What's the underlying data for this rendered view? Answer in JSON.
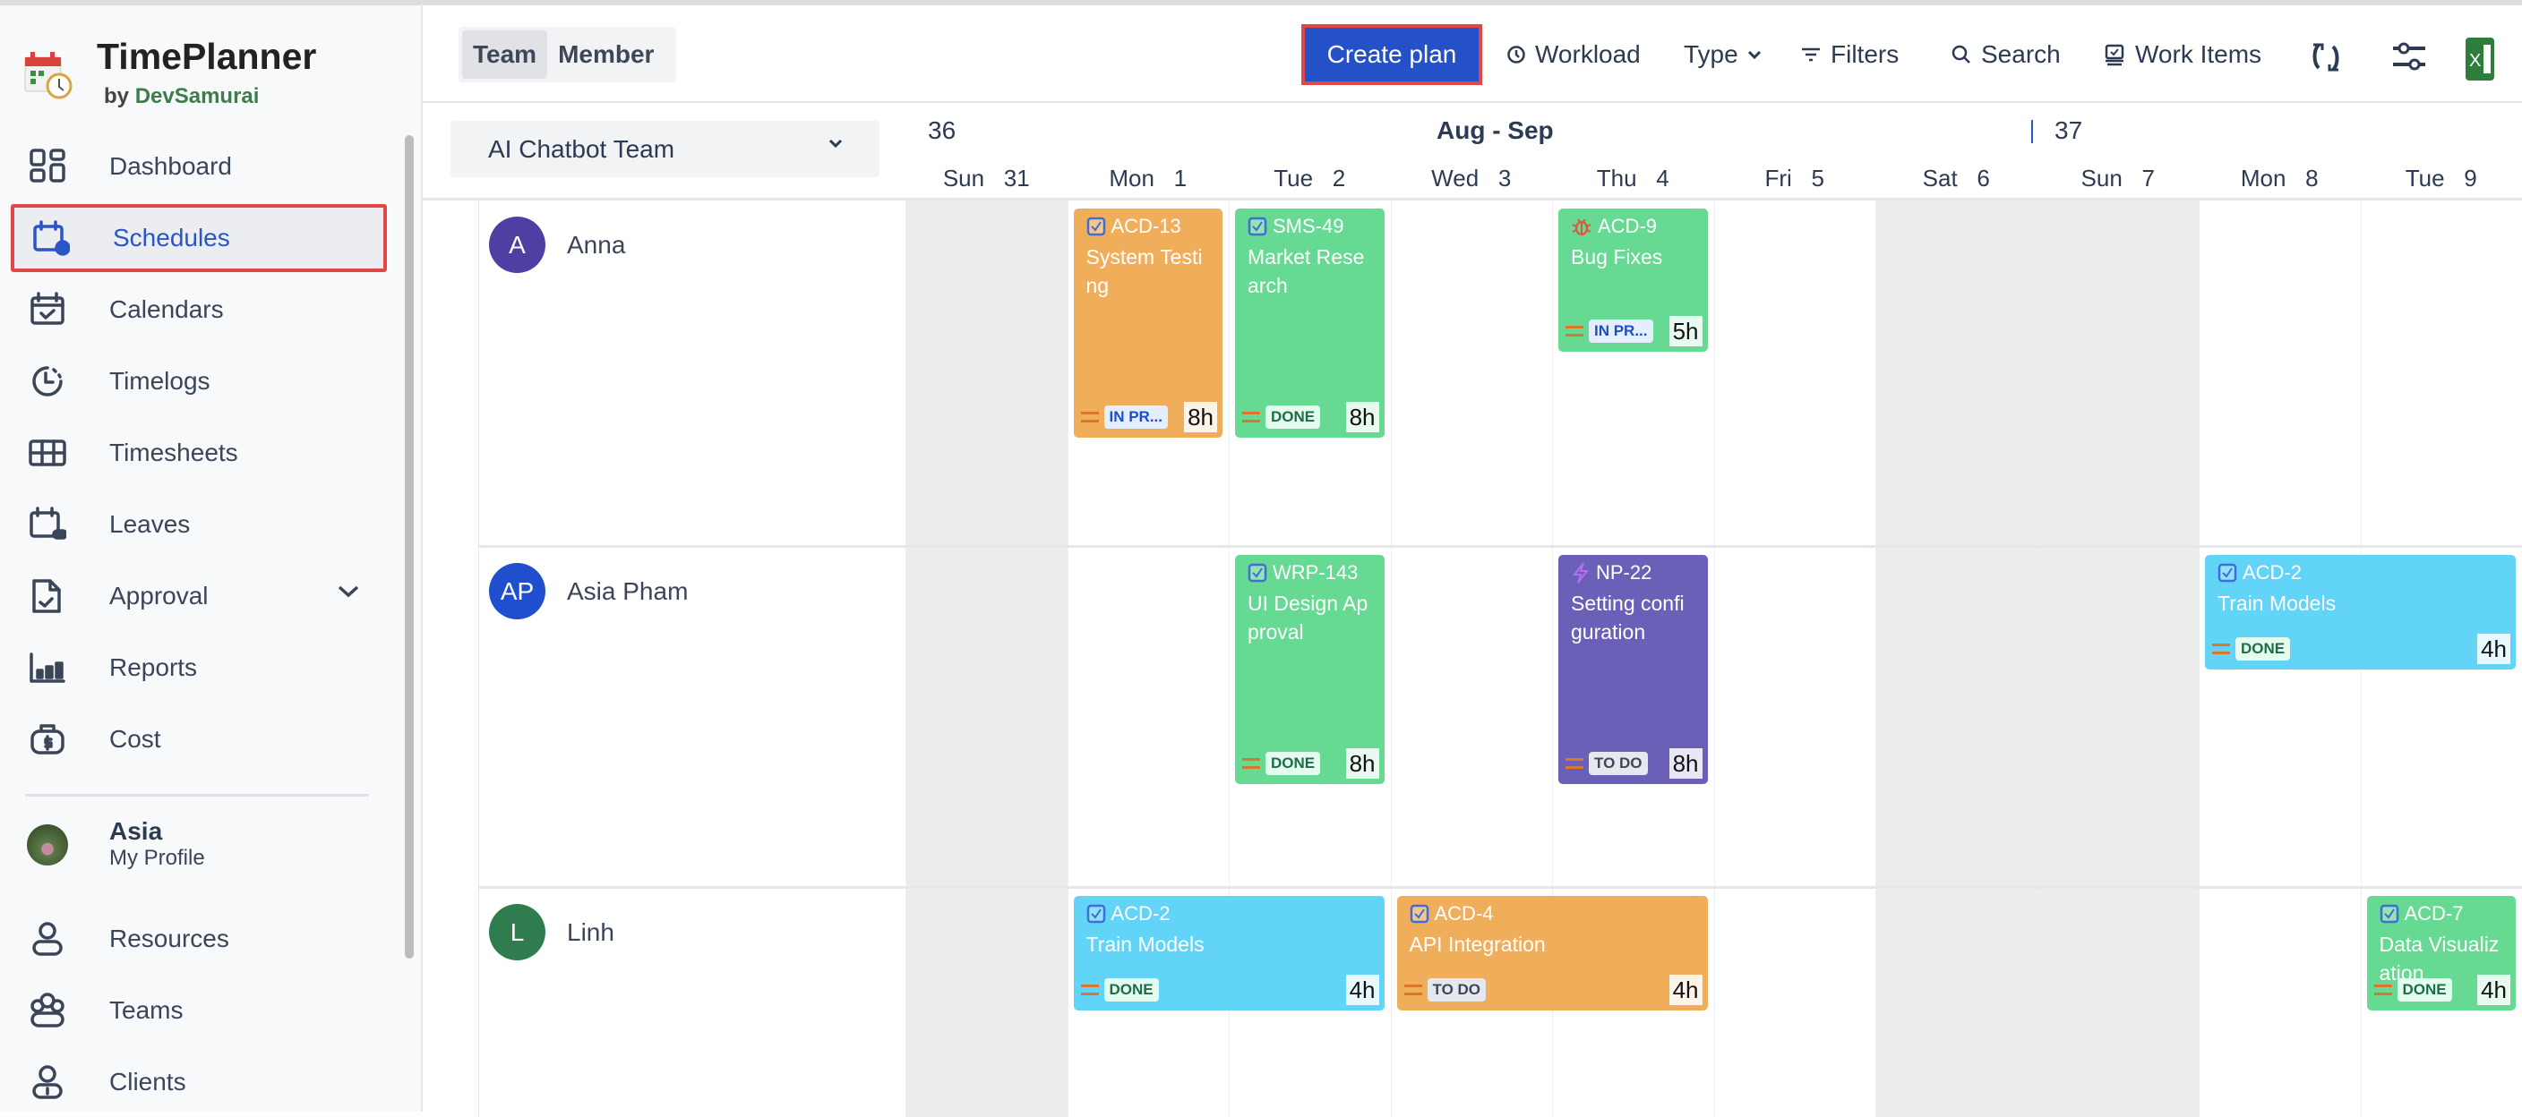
{
  "app": {
    "name": "TimePlanner",
    "by": "by",
    "vendor": "DevSamurai"
  },
  "sidebar": {
    "items": [
      {
        "label": "Dashboard",
        "icon": "dashboard-icon"
      },
      {
        "label": "Schedules",
        "icon": "calendar-plus-icon",
        "active": true
      },
      {
        "label": "Calendars",
        "icon": "calendar-check-icon"
      },
      {
        "label": "Timelogs",
        "icon": "clock-icon"
      },
      {
        "label": "Timesheets",
        "icon": "grid-table-icon"
      },
      {
        "label": "Leaves",
        "icon": "calendar-minus-icon"
      },
      {
        "label": "Approval",
        "icon": "document-check-icon",
        "expandable": true
      },
      {
        "label": "Reports",
        "icon": "bar-chart-icon"
      },
      {
        "label": "Cost",
        "icon": "money-bag-icon"
      }
    ],
    "profile": {
      "name": "Asia",
      "sub": "My Profile"
    },
    "bottom_items": [
      {
        "label": "Resources",
        "icon": "person-icon"
      },
      {
        "label": "Teams",
        "icon": "group-icon"
      },
      {
        "label": "Clients",
        "icon": "client-icon"
      }
    ]
  },
  "header": {
    "view_toggle": [
      "Team",
      "Member"
    ],
    "selected_view": "Team",
    "create_label": "Create plan",
    "workload": "Workload",
    "type": "Type",
    "filters": "Filters",
    "search": "Search",
    "work_items": "Work Items"
  },
  "team_select": "AI Chatbot Team",
  "calendar": {
    "week_a": "36",
    "week_b": "37",
    "month": "Aug - Sep",
    "days": [
      {
        "dow": "Sun",
        "d": "31",
        "weekend": true
      },
      {
        "dow": "Mon",
        "d": "1"
      },
      {
        "dow": "Tue",
        "d": "2"
      },
      {
        "dow": "Wed",
        "d": "3"
      },
      {
        "dow": "Thu",
        "d": "4"
      },
      {
        "dow": "Fri",
        "d": "5"
      },
      {
        "dow": "Sat",
        "d": "6",
        "weekend": true
      },
      {
        "dow": "Sun",
        "d": "7",
        "weekend": true
      },
      {
        "dow": "Mon",
        "d": "8"
      },
      {
        "dow": "Tue",
        "d": "9"
      }
    ]
  },
  "colors": {
    "orange": "#f1ae5a",
    "green": "#66d993",
    "cyan": "#62d4f7",
    "purple": "#6b60b8",
    "accent": "#2450c8"
  },
  "people": [
    {
      "initials": "A",
      "name": "Anna",
      "avatar": "#4e3fa3",
      "plans": [
        {
          "key": "ACD-13",
          "title": "System Testing",
          "type": "task",
          "start": "Mon 1",
          "days": 1,
          "hours": "8h",
          "status": "IN PR...",
          "color": "orange"
        },
        {
          "key": "SMS-49",
          "title": "Market Research",
          "type": "task",
          "start": "Tue 2",
          "days": 1,
          "hours": "8h",
          "status": "DONE",
          "color": "green"
        },
        {
          "key": "ACD-9",
          "title": "Bug Fixes",
          "type": "bug",
          "start": "Thu 4",
          "days": 1,
          "hours": "5h",
          "status": "IN PR...",
          "color": "green"
        }
      ]
    },
    {
      "initials": "AP",
      "name": "Asia Pham",
      "avatar": "#1f4fcf",
      "plans": [
        {
          "key": "WRP-143",
          "title": "UI Design Approval",
          "type": "task",
          "start": "Tue 2",
          "days": 1,
          "hours": "8h",
          "status": "DONE",
          "color": "green"
        },
        {
          "key": "NP-22",
          "title": "Setting configuration",
          "type": "epic",
          "start": "Thu 4",
          "days": 1,
          "hours": "8h",
          "status": "TO DO",
          "color": "purple"
        },
        {
          "key": "ACD-2",
          "title": "Train Models",
          "type": "task",
          "start": "Mon 8",
          "days": 2,
          "hours": "4h",
          "status": "DONE",
          "color": "cyan"
        }
      ]
    },
    {
      "initials": "L",
      "name": "Linh",
      "avatar": "#2f7d4f",
      "plans": [
        {
          "key": "ACD-2",
          "title": "Train Models",
          "type": "task",
          "start": "Mon 1",
          "days": 2,
          "hours": "4h",
          "status": "DONE",
          "color": "cyan"
        },
        {
          "key": "ACD-4",
          "title": "API Integration",
          "type": "task",
          "start": "Wed 3",
          "days": 2,
          "hours": "4h",
          "status": "TO DO",
          "color": "orange"
        },
        {
          "key": "ACD-7",
          "title": "Data Visualization",
          "type": "task",
          "start": "Tue 9",
          "days": 1,
          "hours": "4h",
          "status": "DONE",
          "color": "green"
        }
      ]
    }
  ]
}
